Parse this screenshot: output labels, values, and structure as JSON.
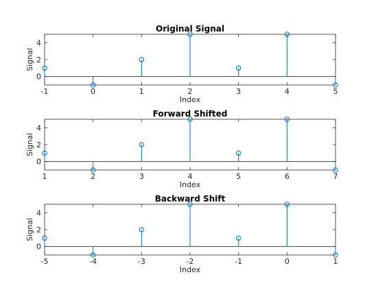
{
  "chart_data": [
    {
      "type": "stem",
      "title": "Original Signal",
      "xlabel": "Index",
      "ylabel": "Signal",
      "xlim": [
        -1,
        5
      ],
      "ylim": [
        -1,
        5
      ],
      "xticks": [
        "-1",
        "0",
        "1",
        "2",
        "3",
        "4",
        "5"
      ],
      "yticks": [
        "0",
        "2",
        "4"
      ],
      "x": [
        -1,
        0,
        1,
        2,
        3,
        4,
        5
      ],
      "values": [
        1,
        -1,
        2,
        5,
        1,
        5,
        -1
      ],
      "color": "#0072BD"
    },
    {
      "type": "stem",
      "title": "Forward Shifted",
      "xlabel": "Index",
      "ylabel": "Signal",
      "xlim": [
        1,
        7
      ],
      "ylim": [
        -1,
        5
      ],
      "xticks": [
        "1",
        "2",
        "3",
        "4",
        "5",
        "6",
        "7"
      ],
      "yticks": [
        "0",
        "2",
        "4"
      ],
      "x": [
        1,
        2,
        3,
        4,
        5,
        6,
        7
      ],
      "values": [
        1,
        -1,
        2,
        5,
        1,
        5,
        -1
      ],
      "color": "#0072BD"
    },
    {
      "type": "stem",
      "title": "Backward Shift",
      "xlabel": "Index",
      "ylabel": "Signal",
      "xlim": [
        -5,
        1
      ],
      "ylim": [
        -1,
        5
      ],
      "xticks": [
        "-5",
        "-4",
        "-3",
        "-2",
        "-1",
        "0",
        "1"
      ],
      "yticks": [
        "0",
        "2",
        "4"
      ],
      "x": [
        -5,
        -4,
        -3,
        -2,
        -1,
        0,
        1
      ],
      "values": [
        1,
        -1,
        2,
        5,
        1,
        5,
        -1
      ],
      "color": "#0072BD"
    }
  ]
}
